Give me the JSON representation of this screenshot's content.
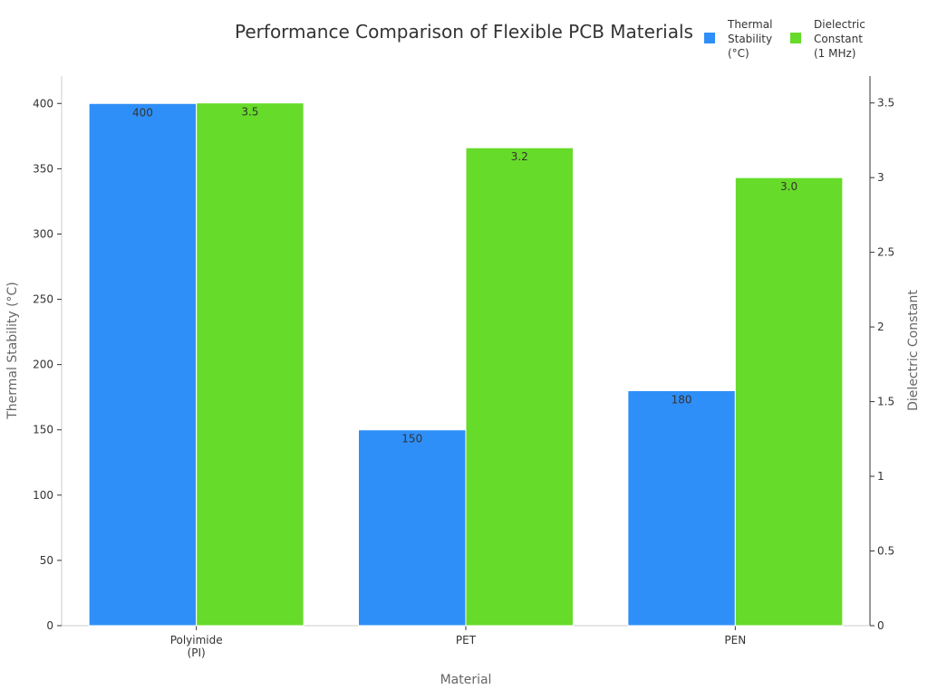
{
  "chart_data": {
    "type": "bar",
    "title": "Performance Comparison of Flexible PCB Materials",
    "xlabel": "Material",
    "ylabel": "Thermal Stability (°C)",
    "y2label": "Dielectric Constant",
    "categories": [
      [
        "Polyimide",
        "(PI)"
      ],
      [
        "PET"
      ],
      [
        "PEN"
      ]
    ],
    "series": [
      {
        "name": [
          "Thermal",
          "Stability",
          "(°C)"
        ],
        "axis": "left",
        "color": "#2f8ff8",
        "values": [
          400,
          150,
          180
        ],
        "labels": [
          "400",
          "150",
          "180"
        ]
      },
      {
        "name": [
          "Dielectric",
          "Constant",
          "(1 MHz)"
        ],
        "axis": "right",
        "color": "#66db29",
        "values": [
          3.5,
          3.2,
          3.0
        ],
        "labels": [
          "3.5",
          "3.2",
          "3.0"
        ]
      }
    ],
    "ylim": [
      0,
      421
    ],
    "y2lim": [
      0,
      3.68
    ],
    "yticks": [
      0,
      50,
      100,
      150,
      200,
      250,
      300,
      350,
      400
    ],
    "y2ticks": [
      "0",
      "0.5",
      "1",
      "1.5",
      "2",
      "2.5",
      "3",
      "3.5"
    ],
    "grid": false,
    "legend": "top-right"
  }
}
